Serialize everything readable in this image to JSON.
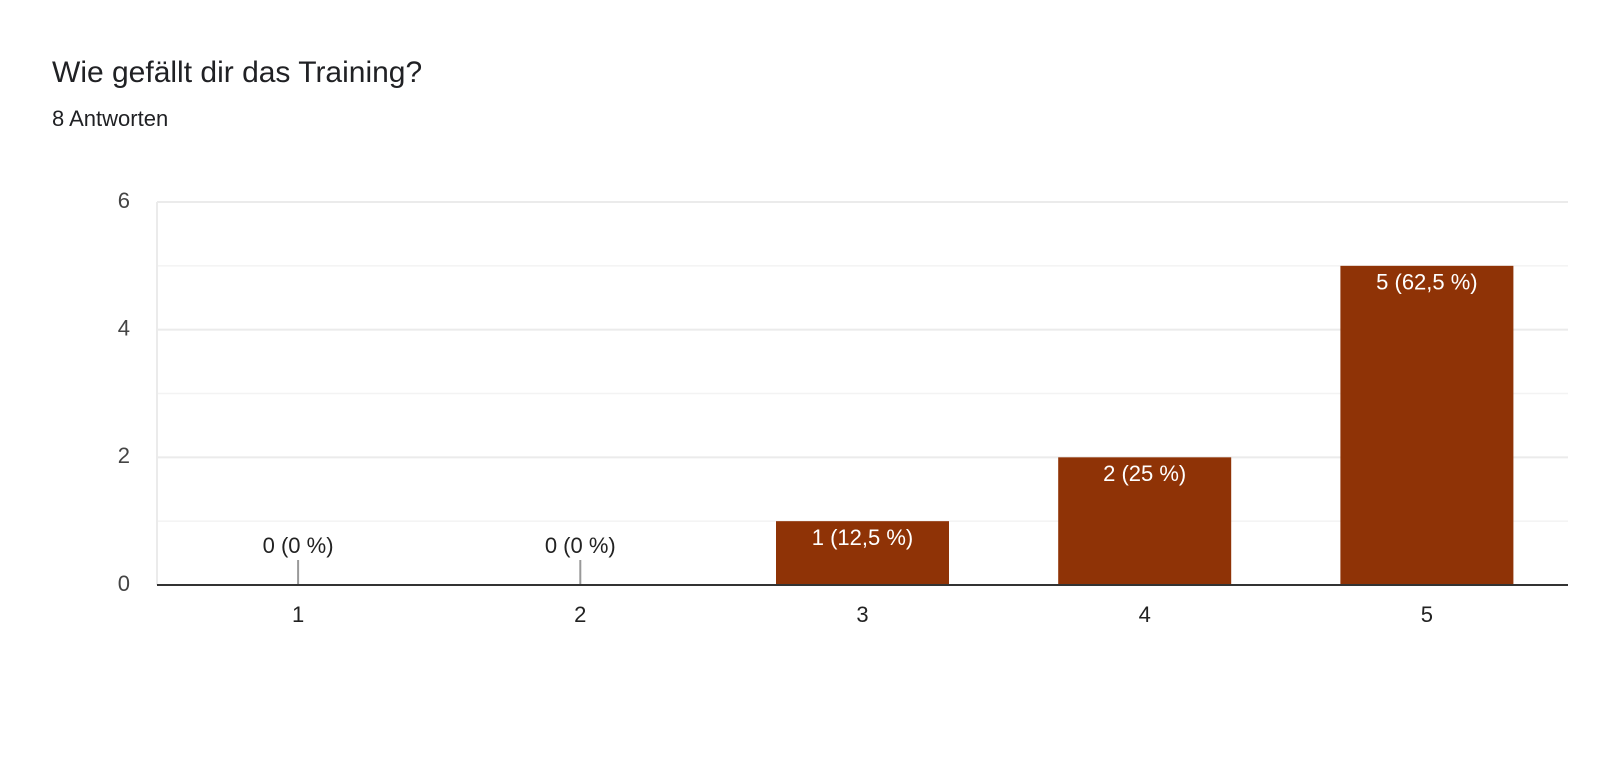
{
  "chart_data": {
    "type": "bar",
    "title": "Wie gefällt dir das Training?",
    "subtitle": "8 Antworten",
    "categories": [
      "1",
      "2",
      "3",
      "4",
      "5"
    ],
    "values": [
      0,
      0,
      1,
      2,
      5
    ],
    "value_labels": [
      "0 (0 %)",
      "0 (0 %)",
      "1 (12,5 %)",
      "2 (25 %)",
      "5 (62,5 %)"
    ],
    "color": "#8f3306",
    "ylim": [
      0,
      6
    ],
    "yticks": [
      0,
      2,
      4,
      6
    ],
    "minor_yticks": [
      1,
      3,
      5
    ],
    "grid": true
  }
}
